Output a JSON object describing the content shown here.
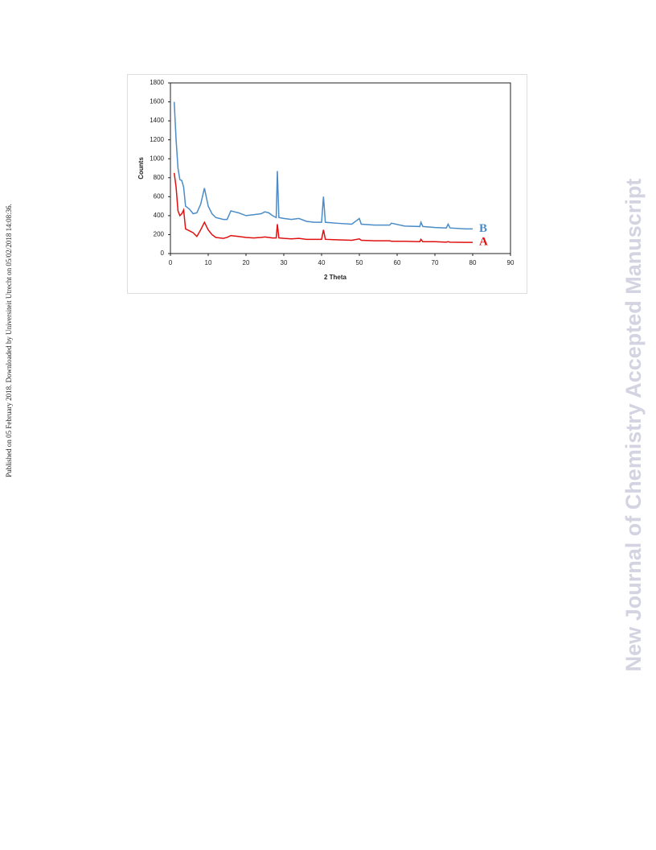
{
  "side_note": "Published on 05 February 2018. Downloaded by Universiteit Utrecht on 05/02/2018 14:08:36.",
  "watermark": "New Journal of Chemistry Accepted Manuscript",
  "chart_data": {
    "type": "line",
    "xlabel": "2 Theta",
    "ylabel": "Counts",
    "xlim": [
      0,
      90
    ],
    "ylim": [
      0,
      1800
    ],
    "xticks": [
      0,
      10,
      20,
      30,
      40,
      50,
      60,
      70,
      80,
      90
    ],
    "yticks": [
      0,
      200,
      400,
      600,
      800,
      1000,
      1200,
      1400,
      1600,
      1800
    ],
    "grid": false,
    "x": [
      1,
      1.5,
      2,
      2.5,
      3,
      3.5,
      4,
      5,
      6,
      7,
      8,
      9,
      10,
      11,
      12,
      14,
      15,
      16,
      17,
      18,
      20,
      22,
      24,
      25,
      26,
      27,
      28,
      28.3,
      28.7,
      30,
      32,
      34,
      36,
      38,
      40,
      40.5,
      41,
      44,
      48,
      50,
      50.5,
      54,
      58,
      58.5,
      62,
      66,
      66.3,
      66.8,
      70,
      73,
      73.5,
      74,
      78,
      80
    ],
    "series": [
      {
        "name": "B",
        "color": "#4a8cc8",
        "values": [
          1600,
          1200,
          900,
          780,
          770,
          700,
          500,
          470,
          420,
          430,
          520,
          690,
          500,
          420,
          380,
          360,
          360,
          450,
          440,
          430,
          400,
          410,
          420,
          440,
          430,
          400,
          380,
          870,
          380,
          370,
          360,
          370,
          340,
          330,
          330,
          600,
          330,
          320,
          310,
          370,
          310,
          300,
          300,
          320,
          290,
          285,
          330,
          285,
          275,
          270,
          310,
          270,
          260,
          260
        ]
      },
      {
        "name": "A",
        "color": "#e01010",
        "values": [
          850,
          700,
          450,
          400,
          420,
          460,
          260,
          240,
          220,
          180,
          250,
          330,
          250,
          200,
          170,
          160,
          170,
          190,
          185,
          180,
          170,
          165,
          170,
          175,
          170,
          165,
          165,
          310,
          165,
          160,
          155,
          160,
          150,
          150,
          150,
          250,
          150,
          145,
          140,
          155,
          140,
          135,
          135,
          130,
          130,
          125,
          150,
          125,
          125,
          120,
          125,
          120,
          118,
          118
        ]
      }
    ]
  }
}
